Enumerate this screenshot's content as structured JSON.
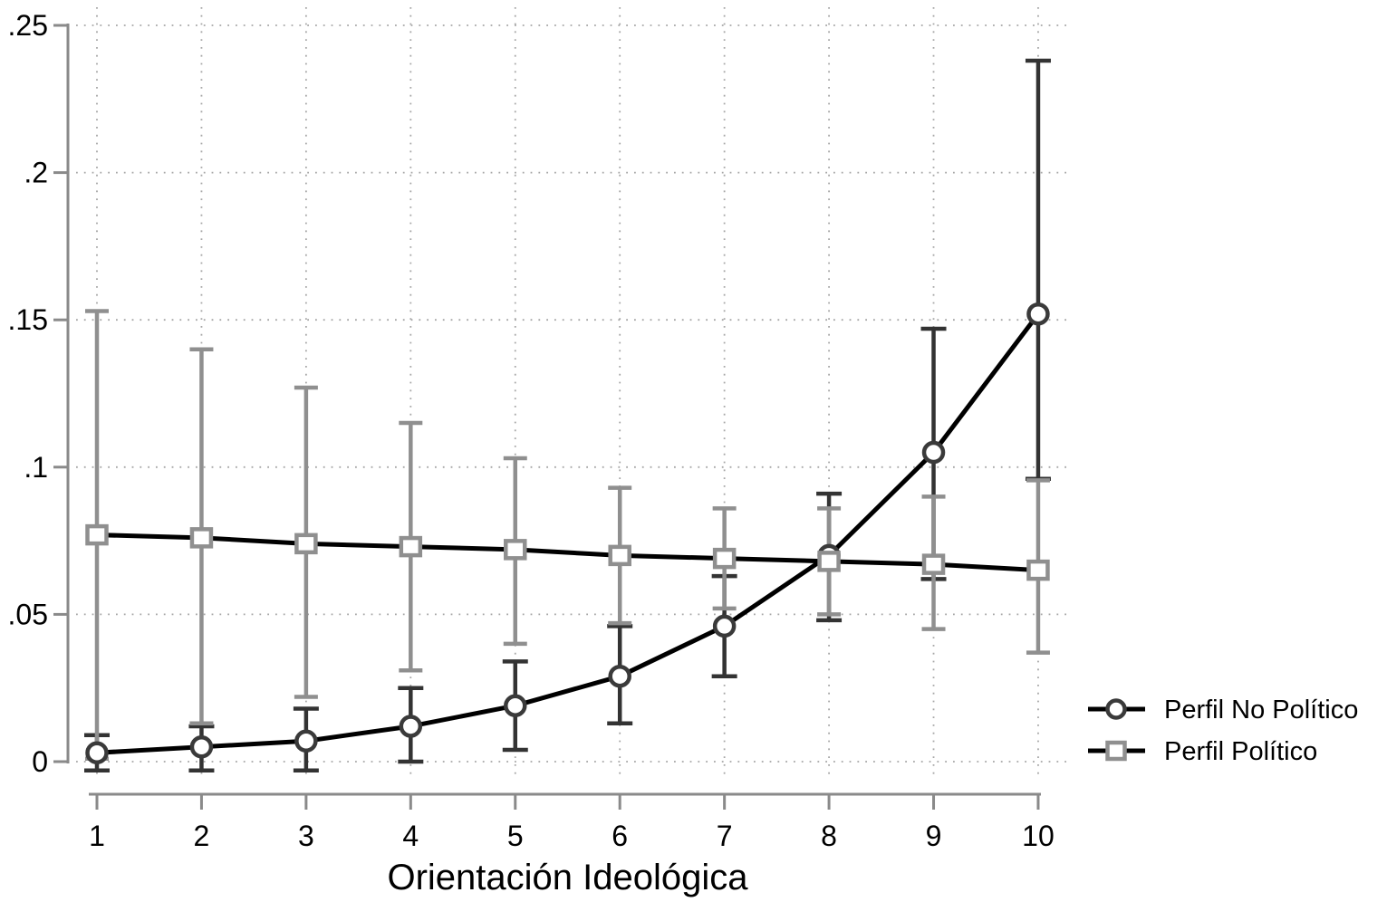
{
  "chart_data": {
    "type": "line",
    "title": "",
    "xlabel": "Orientación Ideológica",
    "ylabel": "",
    "x": [
      1,
      2,
      3,
      4,
      5,
      6,
      7,
      8,
      9,
      10
    ],
    "xtick_labels": [
      "1",
      "2",
      "3",
      "4",
      "5",
      "6",
      "7",
      "8",
      "9",
      "10"
    ],
    "yticks": [
      0,
      0.05,
      0.1,
      0.15,
      0.2,
      0.25
    ],
    "ytick_labels": [
      "0",
      ".05",
      ".1",
      ".15",
      ".2",
      ".25"
    ],
    "ylim": [
      -0.012,
      0.256
    ],
    "xlim": [
      1,
      10
    ],
    "grid": "dotted-both",
    "legend_position": "right-outside",
    "series": [
      {
        "name": "Perfil No Político",
        "marker": "circle",
        "marker_color": "#3a3a3a",
        "errorbar_color": "#333333",
        "line_color": "#000000",
        "values": [
          0.003,
          0.005,
          0.007,
          0.012,
          0.019,
          0.029,
          0.046,
          0.07,
          0.105,
          0.152
        ],
        "ci_low": [
          -0.003,
          -0.003,
          -0.003,
          0.0,
          0.004,
          0.013,
          0.029,
          0.048,
          0.062,
          0.096
        ],
        "ci_high": [
          0.009,
          0.012,
          0.018,
          0.025,
          0.034,
          0.046,
          0.063,
          0.091,
          0.147,
          0.238
        ]
      },
      {
        "name": "Perfil Político",
        "marker": "square",
        "marker_color": "#8f8f8f",
        "errorbar_color": "#8f8f8f",
        "line_color": "#000000",
        "values": [
          0.077,
          0.076,
          0.074,
          0.073,
          0.072,
          0.07,
          0.069,
          0.068,
          0.067,
          0.065
        ],
        "ci_low": [
          0.001,
          0.013,
          0.022,
          0.031,
          0.04,
          0.047,
          0.052,
          0.05,
          0.045,
          0.037
        ],
        "ci_high": [
          0.153,
          0.14,
          0.127,
          0.115,
          0.103,
          0.093,
          0.086,
          0.086,
          0.09,
          0.0955
        ]
      }
    ],
    "colors": {
      "axis": "#8a8a8a",
      "grid": "#a6a6a6",
      "text": "#000000",
      "background": "#ffffff"
    }
  }
}
